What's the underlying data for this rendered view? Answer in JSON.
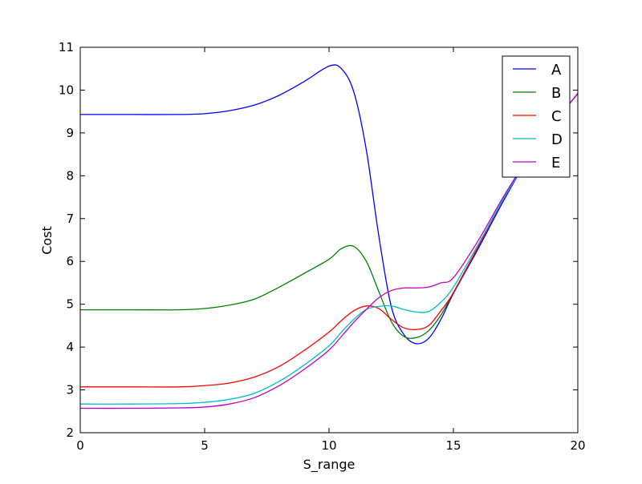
{
  "chart_data": {
    "type": "line",
    "title": "",
    "xlabel": "S_range",
    "ylabel": "Cost",
    "xlim": [
      0,
      20
    ],
    "ylim": [
      2,
      11
    ],
    "xticks": [
      "0",
      "5",
      "10",
      "15",
      "20"
    ],
    "yticks": [
      "2",
      "3",
      "4",
      "5",
      "6",
      "7",
      "8",
      "9",
      "10",
      "11"
    ],
    "grid": false,
    "legend_placement": "top-right",
    "x": [
      0,
      2,
      4,
      5,
      6,
      7,
      8,
      9,
      10,
      10.5,
      11,
      11.5,
      12,
      12.5,
      13,
      13.5,
      14,
      14.5,
      15,
      16,
      17,
      18,
      19,
      20
    ],
    "series": [
      {
        "name": "A",
        "color": "#0000ff",
        "values": [
          9.43,
          9.43,
          9.43,
          9.45,
          9.52,
          9.65,
          9.88,
          10.2,
          10.56,
          10.5,
          9.95,
          8.6,
          6.6,
          4.95,
          4.3,
          4.08,
          4.2,
          4.65,
          5.25,
          6.3,
          7.4,
          8.4,
          9.2,
          9.92
        ]
      },
      {
        "name": "B",
        "color": "#008000",
        "values": [
          4.87,
          4.87,
          4.87,
          4.9,
          4.98,
          5.12,
          5.4,
          5.72,
          6.05,
          6.3,
          6.35,
          6.0,
          5.3,
          4.6,
          4.25,
          4.22,
          4.38,
          4.75,
          5.27,
          6.35,
          7.45,
          8.4,
          9.2,
          9.92
        ]
      },
      {
        "name": "C",
        "color": "#ff0000",
        "values": [
          3.07,
          3.07,
          3.07,
          3.1,
          3.16,
          3.3,
          3.55,
          3.92,
          4.35,
          4.62,
          4.85,
          4.96,
          4.9,
          4.65,
          4.45,
          4.41,
          4.5,
          4.85,
          5.27,
          6.35,
          7.45,
          8.4,
          9.2,
          9.92
        ]
      },
      {
        "name": "D",
        "color": "#00bfbf",
        "values": [
          2.67,
          2.67,
          2.68,
          2.71,
          2.78,
          2.92,
          3.2,
          3.58,
          4.03,
          4.35,
          4.65,
          4.88,
          4.95,
          4.96,
          4.88,
          4.82,
          4.83,
          5.05,
          5.4,
          6.4,
          7.45,
          8.4,
          9.2,
          9.92
        ]
      },
      {
        "name": "E",
        "color": "#bf00bf",
        "values": [
          2.57,
          2.57,
          2.58,
          2.6,
          2.67,
          2.82,
          3.1,
          3.48,
          3.93,
          4.25,
          4.58,
          4.88,
          5.15,
          5.32,
          5.38,
          5.38,
          5.4,
          5.5,
          5.62,
          6.49,
          7.5,
          8.42,
          9.2,
          9.92
        ]
      }
    ]
  }
}
